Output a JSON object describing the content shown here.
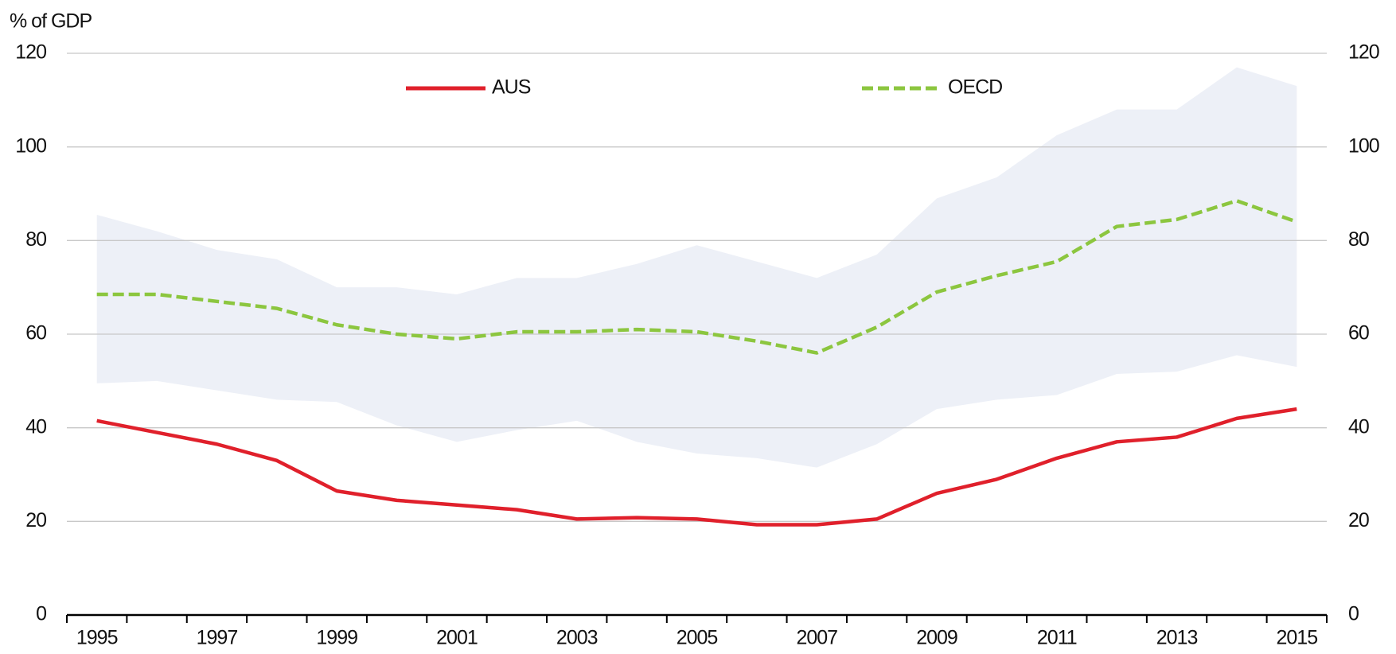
{
  "chart_data": {
    "type": "line",
    "y_axis_label": "% of GDP",
    "x": [
      1995,
      1996,
      1997,
      1998,
      1999,
      2000,
      2001,
      2002,
      2003,
      2004,
      2005,
      2006,
      2007,
      2008,
      2009,
      2010,
      2011,
      2012,
      2013,
      2014,
      2015
    ],
    "xlim": [
      1994.5,
      2015.5
    ],
    "xticks": [
      1995,
      1997,
      1999,
      2001,
      2003,
      2005,
      2007,
      2009,
      2011,
      2013,
      2015
    ],
    "ylim": [
      0,
      120
    ],
    "yticks": [
      0,
      20,
      40,
      60,
      80,
      100,
      120
    ],
    "y2lim": [
      0,
      120
    ],
    "y2ticks": [
      0,
      20,
      40,
      60,
      80,
      100,
      120
    ],
    "grid": true,
    "band": {
      "color": "#edf0f7",
      "upper": [
        85.5,
        82,
        78,
        76,
        70,
        70,
        68.5,
        72,
        72,
        75,
        79,
        75.5,
        72,
        77,
        89,
        93.5,
        102.5,
        108,
        108,
        117,
        113
      ],
      "lower": [
        49.5,
        50,
        48,
        46,
        45.5,
        40.5,
        37,
        39.5,
        41.5,
        37,
        34.5,
        33.5,
        31.5,
        36.5,
        44,
        46,
        47,
        51.5,
        52,
        55.5,
        53
      ]
    },
    "series": [
      {
        "name": "AUS",
        "color": "#e0202b",
        "dashed": false,
        "values": [
          41.5,
          39,
          36.5,
          33,
          26.5,
          24.5,
          23.5,
          22.5,
          20.5,
          20.8,
          20.5,
          19.3,
          19.3,
          20.5,
          26,
          29,
          33.5,
          37,
          38,
          42,
          44
        ]
      },
      {
        "name": "OECD",
        "color": "#8cc63f",
        "dashed": true,
        "values": [
          68.5,
          68.5,
          67,
          65.5,
          62,
          60,
          59,
          60.5,
          60.5,
          61,
          60.5,
          58.5,
          56,
          61.5,
          69,
          72.5,
          75.5,
          83,
          84.5,
          88.5,
          84
        ]
      }
    ]
  }
}
